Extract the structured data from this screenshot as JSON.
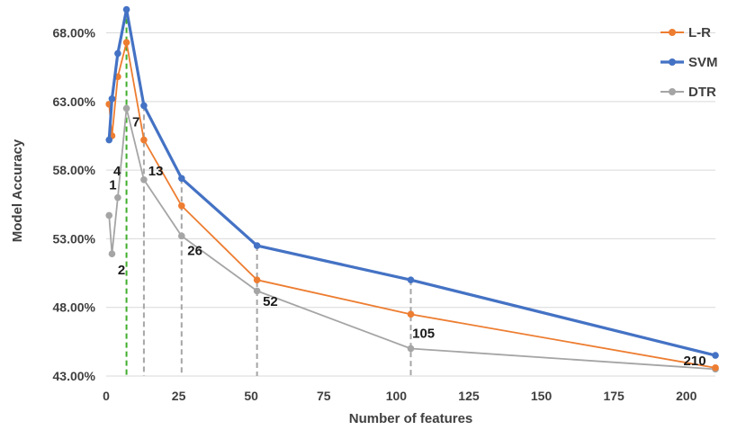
{
  "chart_data": {
    "type": "line",
    "title": "",
    "xlabel": "Number of features",
    "ylabel": "Model Accuracy",
    "xlim": [
      0,
      210
    ],
    "ylim": [
      43,
      70
    ],
    "x_ticks": [
      "0",
      "25",
      "50",
      "75",
      "100",
      "125",
      "150",
      "175",
      "200"
    ],
    "y_ticks": [
      "43.00%",
      "48.00%",
      "53.00%",
      "58.00%",
      "63.00%",
      "68.00%"
    ],
    "grid": "horizontal",
    "legend_position": "top-right",
    "series": [
      {
        "name": "L-R",
        "color": "#ED7D31",
        "x": [
          1,
          2,
          4,
          7,
          13,
          26,
          52,
          105,
          210
        ],
        "y": [
          62.8,
          60.5,
          64.8,
          67.3,
          60.2,
          55.4,
          50.0,
          47.5,
          43.6
        ]
      },
      {
        "name": "SVM",
        "color": "#4472C4",
        "x": [
          1,
          2,
          4,
          7,
          13,
          26,
          52,
          105,
          210
        ],
        "y": [
          60.2,
          63.2,
          66.5,
          69.7,
          62.7,
          57.4,
          52.5,
          50.0,
          44.5
        ]
      },
      {
        "name": "DTR",
        "color": "#A5A5A5",
        "x": [
          1,
          2,
          4,
          7,
          13,
          26,
          52,
          105,
          210
        ],
        "y": [
          54.7,
          51.9,
          56.0,
          62.5,
          57.3,
          53.2,
          49.2,
          45.0,
          43.5
        ]
      }
    ],
    "vertical_reference_lines": [
      {
        "x": 7,
        "color": "#3FAE2A"
      },
      {
        "x": 13,
        "color": "#A6A6A6"
      },
      {
        "x": 26,
        "color": "#A6A6A6"
      },
      {
        "x": 52,
        "color": "#A6A6A6"
      },
      {
        "x": 105,
        "color": "#A6A6A6"
      }
    ],
    "annotations": [
      {
        "text": "1",
        "x": 1,
        "y": 56.6
      },
      {
        "text": "2",
        "x": 4,
        "y": 50.4
      },
      {
        "text": "4",
        "x": 2.5,
        "y": 57.6
      },
      {
        "text": "7",
        "x": 9,
        "y": 61.2
      },
      {
        "text": "13",
        "x": 14.5,
        "y": 57.6
      },
      {
        "text": "26",
        "x": 28,
        "y": 51.8
      },
      {
        "text": "52",
        "x": 54,
        "y": 48.1
      },
      {
        "text": "105",
        "x": 105.5,
        "y": 45.8
      },
      {
        "text": "210",
        "x": 199,
        "y": 43.8
      }
    ]
  }
}
